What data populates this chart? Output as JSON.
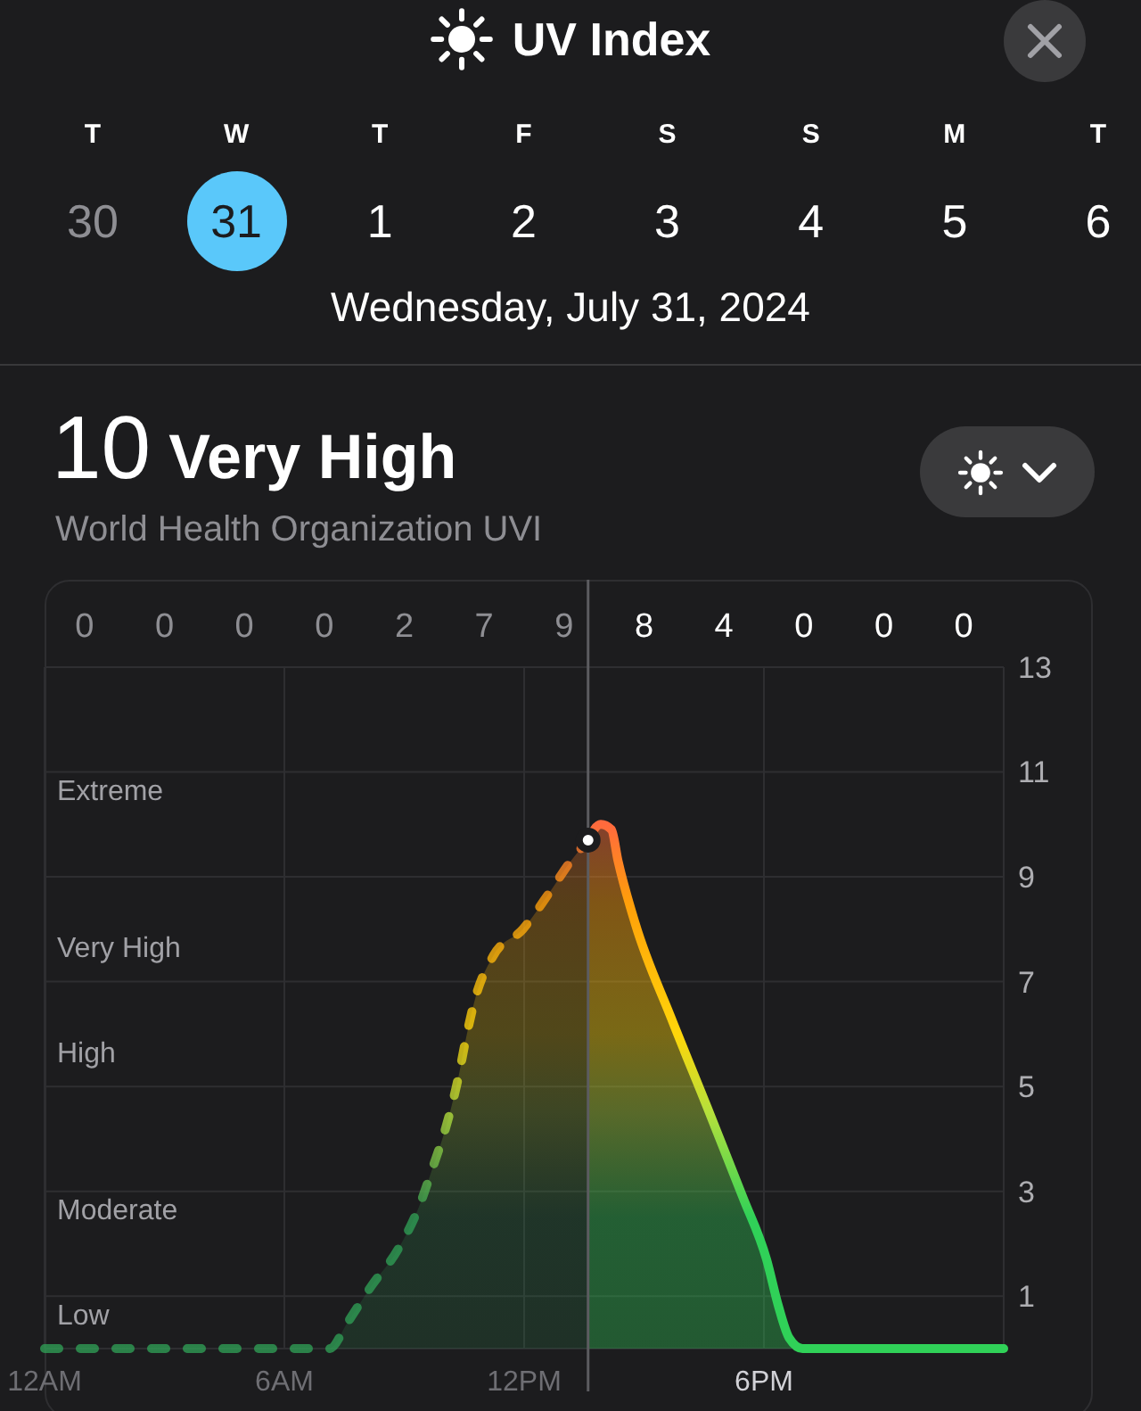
{
  "chart_data": {
    "type": "area",
    "title": "UV Index",
    "subtitle": "Wednesday, July 31, 2024",
    "annotations": [
      "T",
      "W",
      "T",
      "F",
      "S",
      "S",
      "M",
      "T",
      "30",
      "31",
      "1",
      "2",
      "3",
      "4",
      "5",
      "6",
      "10",
      "Very High",
      "World Health Organization UVI",
      "0",
      "0",
      "0",
      "0",
      "2",
      "7",
      "9",
      "8",
      "4",
      "0",
      "0",
      "0",
      "Extreme",
      "Very High",
      "High",
      "Moderate",
      "Low"
    ],
    "xlim": [
      "2024-07-31T00:00",
      "2024-08-01T00:00"
    ],
    "xticks": [
      {
        "value": "2024-07-31T00:00",
        "label": "12AM"
      },
      {
        "value": "2024-07-31T06:00",
        "label": "6AM"
      },
      {
        "value": "2024-07-31T12:00",
        "label": "12PM"
      },
      {
        "value": "2024-07-31T18:00",
        "label": "6PM"
      },
      {
        "value": "2024-08-01T00:00",
        "label": null
      }
    ],
    "ylim": [
      0,
      13
    ],
    "yticks": [
      1,
      3,
      5,
      7,
      9,
      11,
      13
    ],
    "grid": true,
    "ref_lines": [
      {
        "axis": "x",
        "value": "2024-07-31T13:36"
      }
    ],
    "series": [
      {
        "line_style": "dashed",
        "color": "#2f9e55",
        "x": [
          "2024-07-31T00:00",
          "2024-07-31T07:08",
          "2024-07-31T07:35",
          "2024-07-31T08:11",
          "2024-07-31T08:51",
          "2024-07-31T09:22",
          "2024-07-31T09:44",
          "2024-07-31T10:02",
          "2024-07-31T10:20",
          "2024-07-31T10:34",
          "2024-07-31T10:47",
          "2024-07-31T11:14",
          "2024-07-31T11:58",
          "2024-07-31T12:38",
          "2024-07-31T13:10",
          "2024-07-31T13:36"
        ],
        "values": [
          0,
          0,
          0.5,
          1.2,
          1.9,
          2.7,
          3.5,
          4.2,
          5.1,
          6,
          6.7,
          7.5,
          8,
          8.7,
          9.3,
          9.7
        ]
      },
      {
        "line_style": "solid",
        "color": "#30d158",
        "x": [
          "2024-07-31T13:36",
          "2024-07-31T13:55",
          "2024-07-31T14:11",
          "2024-07-31T14:21",
          "2024-07-31T14:47",
          "2024-07-31T15:41",
          "2024-07-31T16:35",
          "2024-07-31T17:28",
          "2024-07-31T18:04",
          "2024-07-31T18:22",
          "2024-07-31T18:38",
          "2024-07-31T18:58",
          "2024-08-01T00:00"
        ],
        "values": [
          9.7,
          10,
          9.9,
          9.3,
          8.1,
          6.3,
          4.6,
          2.9,
          1.7,
          0.8,
          0.2,
          0,
          0
        ]
      },
      {
        "type": "scatter",
        "marker": "circle",
        "color": "#ffffff",
        "x": [
          "2024-07-31T13:36"
        ],
        "values": [
          9.7
        ]
      }
    ]
  }
}
